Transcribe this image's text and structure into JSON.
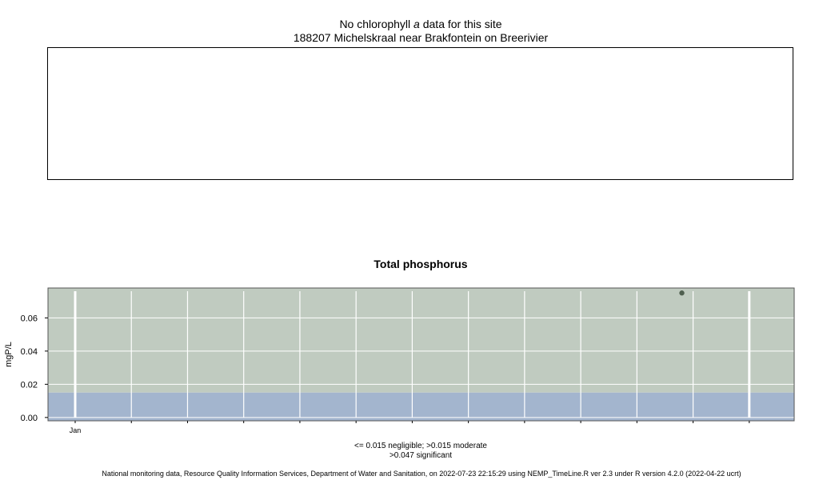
{
  "top_panel": {
    "title_prefix": "No chlorophyll ",
    "title_italic": "a",
    "title_suffix": "  data for this site",
    "site_name": "188207 Michelskraal near Brakfontein on Breerivier"
  },
  "chart_data": {
    "type": "scatter",
    "title": "Total phosphorus",
    "ylabel": "mgP/L",
    "xlabel": "",
    "ylim": [
      -0.002,
      0.078
    ],
    "yticks": [
      0.0,
      0.02,
      0.04,
      0.06
    ],
    "ytick_labels": [
      "0.00",
      "0.02",
      "0.04",
      "0.06"
    ],
    "x_range_months": [
      0,
      12.8
    ],
    "x_tick_labels": [
      {
        "month": 0,
        "label": "Jan"
      }
    ],
    "year_boundaries": [
      0,
      12.0
    ],
    "month_gridlines": [
      1,
      2,
      3,
      4,
      5,
      6,
      7,
      8,
      9,
      10,
      11
    ],
    "band_boundaries": [
      0.015,
      0.047
    ],
    "band_colors": {
      "negligible": "#a3b5ce",
      "moderate": "#c0cbc0",
      "significant": "#c0cbc0"
    },
    "points": [
      {
        "x": 10.8,
        "y": 0.075
      }
    ],
    "point_color": "#4f5f4f",
    "grid": true,
    "legend_line1": "<= 0.015 negligible; >0.015 moderate",
    "legend_line2": ">0.047 significant"
  },
  "footer": "National monitoring data, Resource Quality Information Services, Department of Water and Sanitation, on 2022-07-23 22:15:29 using NEMP_TimeLine.R ver 2.3 under R version 4.2.0 (2022-04-22 ucrt)"
}
